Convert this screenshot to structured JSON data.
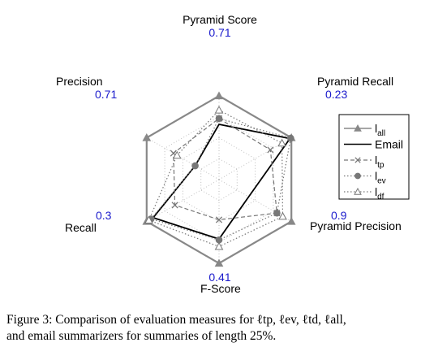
{
  "chart_data": {
    "type": "radar",
    "axes": [
      {
        "label": "Pyramid Score",
        "max_label": "0.71"
      },
      {
        "label": "Pyramid Recall",
        "max_label": "0.23"
      },
      {
        "label": "Pyramid Precision",
        "max_label": "0.9"
      },
      {
        "label": "F-Score",
        "max_label": "0.41"
      },
      {
        "label": "Recall",
        "max_label": "0.3"
      },
      {
        "label": "Precision",
        "max_label": "0.71"
      }
    ],
    "rings": 4,
    "series": [
      {
        "name": "l_all",
        "legend_main": "l",
        "legend_sub": "all",
        "color": "#888888",
        "line": "solid",
        "marker": "triangle-filled",
        "values": [
          1.0,
          1.0,
          1.0,
          1.0,
          1.0,
          1.0
        ]
      },
      {
        "name": "Email",
        "legend_main": "Email",
        "legend_sub": "",
        "color": "#000000",
        "line": "solid",
        "marker": "none",
        "values": [
          0.66,
          0.98,
          0.41,
          0.71,
          0.91,
          0.33
        ]
      },
      {
        "name": "l_tp",
        "legend_main": "l",
        "legend_sub": "tp",
        "color": "#777777",
        "line": "dashed",
        "marker": "x",
        "values": [
          0.73,
          0.71,
          0.8,
          0.48,
          0.61,
          0.63
        ]
      },
      {
        "name": "l_ev",
        "legend_main": "l",
        "legend_sub": "ev",
        "color": "#777777",
        "line": "dotted",
        "marker": "circle-filled",
        "values": [
          0.73,
          0.99,
          0.8,
          0.72,
          0.94,
          0.33
        ]
      },
      {
        "name": "l_df",
        "legend_main": "l",
        "legend_sub": "df",
        "color": "#777777",
        "line": "dotted",
        "marker": "triangle-open",
        "values": [
          0.83,
          0.87,
          0.88,
          0.8,
          0.97,
          0.58
        ]
      }
    ]
  },
  "caption": {
    "line1": "Figure 3: Comparison of evaluation measures for ℓtp, ℓev, ℓtd, ℓall,",
    "line2": "and email summarizers for summaries of length 25%."
  }
}
